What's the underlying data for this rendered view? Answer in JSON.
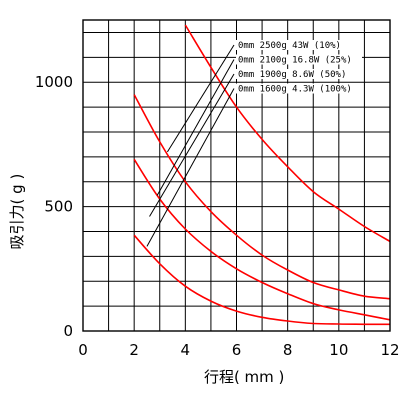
{
  "chart_data": {
    "type": "line",
    "title": "",
    "xlabel": "行程( mm )",
    "ylabel": "吸引力( g )",
    "xlim": [
      0,
      12
    ],
    "ylim": [
      0,
      1250
    ],
    "x_ticks": [
      0,
      2,
      4,
      6,
      8,
      10,
      12
    ],
    "y_ticks": [
      0,
      500,
      1000
    ],
    "x_grid_step": 1,
    "y_grid_step": 100,
    "grid": true,
    "legend_position": "top-right",
    "line_color": "#ff0000",
    "series": [
      {
        "name": "0mm 2500g  43W   (10%)",
        "x": [
          4,
          5,
          6,
          7,
          8,
          9,
          10,
          11,
          12
        ],
        "y": [
          1230,
          1060,
          900,
          770,
          660,
          560,
          490,
          420,
          360
        ]
      },
      {
        "name": "0mm 2100g  16.8W  (25%)",
        "x": [
          2,
          3,
          4,
          5,
          6,
          7,
          8,
          9,
          10,
          11,
          12
        ],
        "y": [
          950,
          760,
          600,
          480,
          385,
          305,
          245,
          195,
          165,
          140,
          130
        ]
      },
      {
        "name": "0mm 1900g  8.6W   (50%)",
        "x": [
          2,
          3,
          4,
          5,
          6,
          7,
          8,
          9,
          10,
          11,
          12
        ],
        "y": [
          690,
          530,
          410,
          320,
          250,
          195,
          150,
          110,
          85,
          65,
          45
        ]
      },
      {
        "name": "0mm 1600g  4.3W   (100%)",
        "x": [
          2,
          3,
          4,
          5,
          6,
          7,
          8,
          9,
          10,
          11,
          12
        ],
        "y": [
          385,
          270,
          180,
          120,
          80,
          55,
          40,
          30,
          28,
          27,
          27
        ]
      }
    ]
  }
}
